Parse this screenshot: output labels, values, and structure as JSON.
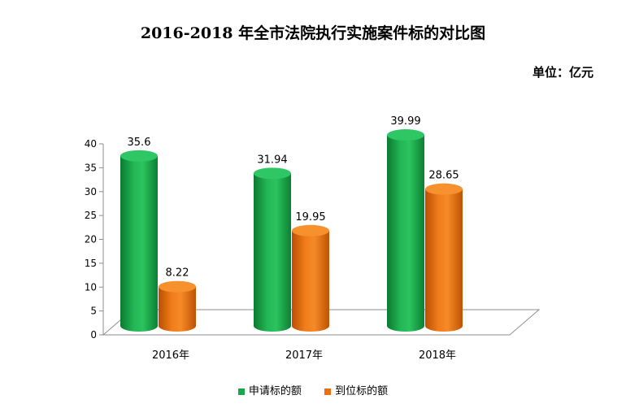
{
  "chart_data": {
    "type": "bar",
    "title": "2016-2018 年全市法院执行实施案件标的对比图",
    "unit_label": "单位：亿元",
    "categories": [
      "2016年",
      "2017年",
      "2018年"
    ],
    "series": [
      {
        "name": "申请标的额",
        "values": [
          35.6,
          31.94,
          39.99
        ],
        "color": "#1aa64a",
        "value_labels": [
          "35.6",
          "31.94",
          "39.99"
        ]
      },
      {
        "name": "到位标的额",
        "values": [
          8.22,
          19.95,
          28.65
        ],
        "color": "#ec6e0c",
        "value_labels": [
          "8.22",
          "19.95",
          "28.65"
        ]
      }
    ],
    "yticks": [
      "0",
      "5",
      "10",
      "15",
      "20",
      "25",
      "30",
      "35",
      "40"
    ],
    "ylim": [
      0,
      40
    ],
    "grid": false,
    "legend_position": "bottom"
  }
}
